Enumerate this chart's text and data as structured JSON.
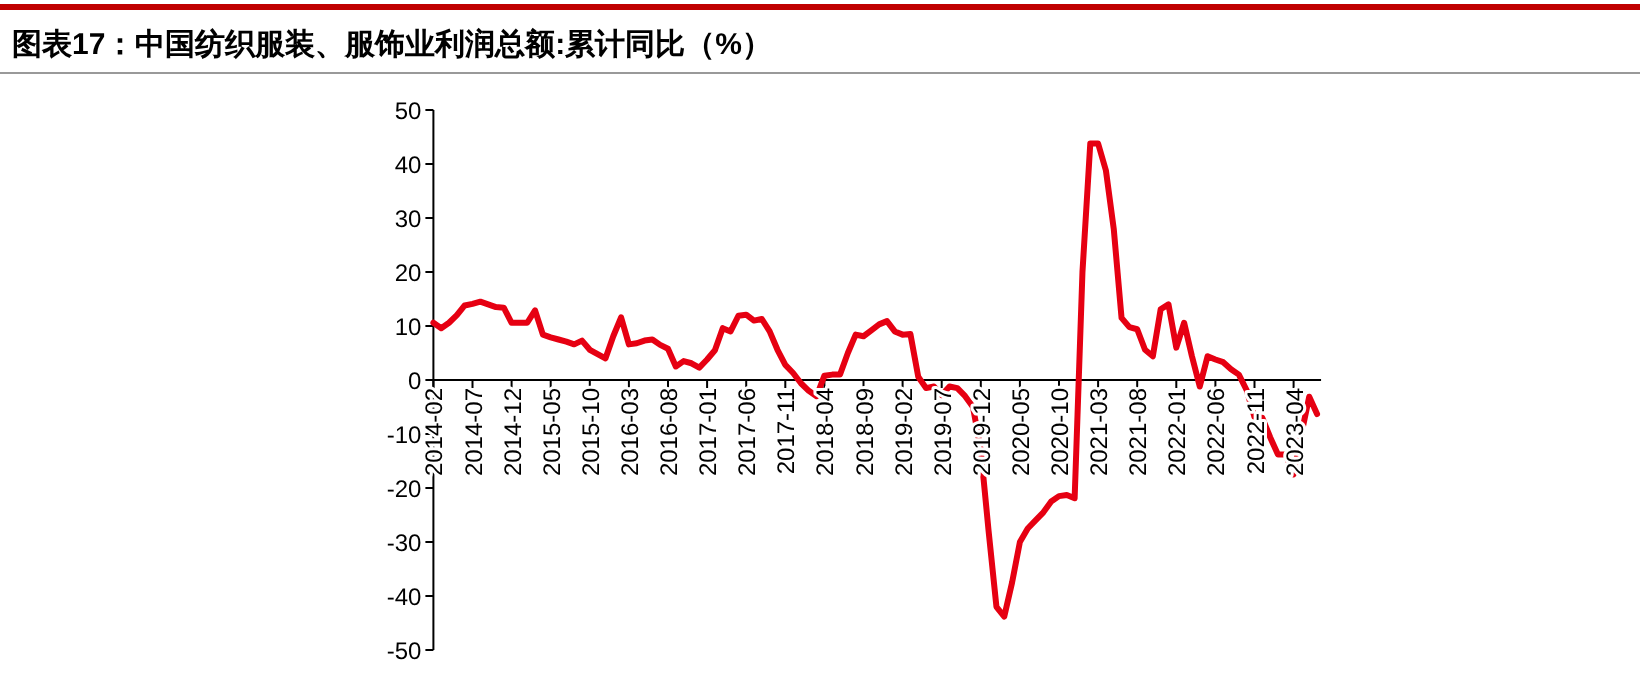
{
  "chart_data": {
    "type": "line",
    "title": "图表17：中国纺织服装、服饰业利润总额:累计同比（%）",
    "categories": [
      "2014-02",
      null,
      null,
      null,
      null,
      "2014-07",
      null,
      null,
      null,
      null,
      "2014-12",
      null,
      null,
      null,
      null,
      "2015-05",
      null,
      null,
      null,
      null,
      "2015-10",
      null,
      null,
      null,
      null,
      "2016-03",
      null,
      null,
      null,
      null,
      "2016-08",
      null,
      null,
      null,
      null,
      "2017-01",
      null,
      null,
      null,
      null,
      "2017-06",
      null,
      null,
      null,
      null,
      "2017-11",
      null,
      null,
      null,
      null,
      "2018-04",
      null,
      null,
      null,
      null,
      "2018-09",
      null,
      null,
      null,
      null,
      "2019-02",
      null,
      null,
      null,
      null,
      "2019-07",
      null,
      null,
      null,
      null,
      "2019-12",
      null,
      null,
      null,
      null,
      "2020-05",
      null,
      null,
      null,
      null,
      "2020-10",
      null,
      null,
      null,
      null,
      "2021-03",
      null,
      null,
      null,
      null,
      "2021-08",
      null,
      null,
      null,
      null,
      "2022-01",
      null,
      null,
      null,
      null,
      "2022-06",
      null,
      null,
      null,
      null,
      "2022-11",
      null,
      null,
      null,
      null,
      "2023-04",
      null,
      null,
      null
    ],
    "values": [
      10.6,
      9.6,
      10.6,
      12,
      13.8,
      14.1,
      14.5,
      14,
      13.5,
      13.4,
      10.6,
      10.6,
      10.6,
      12.9,
      8.4,
      7.9,
      7.5,
      7.1,
      6.6,
      7.3,
      5.6,
      4.8,
      4,
      8.1,
      11.6,
      6.6,
      6.8,
      7.3,
      7.5,
      6.5,
      5.8,
      2.5,
      3.5,
      3.1,
      2.3,
      3.8,
      5.5,
      9.6,
      9,
      11.9,
      12.1,
      11,
      11.3,
      9,
      5.6,
      2.8,
      1.3,
      -0.6,
      -2,
      -3,
      0.8,
      1,
      1,
      5,
      8.4,
      8.1,
      9.2,
      10.3,
      10.9,
      9,
      8.4,
      8.5,
      0.6,
      -1.5,
      -1.2,
      -2.8,
      -1.2,
      -1.5,
      -3,
      -5,
      -13,
      -28,
      -42,
      -43.8,
      -37.5,
      -30,
      -27.5,
      -26,
      -24.5,
      -22.5,
      -21.5,
      -21.3,
      -21.9,
      20,
      43.8,
      43.8,
      38.8,
      28,
      11.5,
      9.8,
      9.4,
      5.6,
      4.4,
      13.1,
      14,
      6,
      10.6,
      4.4,
      -1.2,
      4.4,
      3.8,
      3.3,
      2,
      1,
      -1.9,
      -6.9,
      -7,
      -10.6,
      -13.8,
      -13.8,
      -17.5,
      -10,
      -3.1,
      -6.3
    ],
    "color": "#e60012",
    "ylim": [
      -50,
      50
    ],
    "yticks": [
      -50,
      -40,
      -30,
      -20,
      -10,
      0,
      10,
      20,
      30,
      40,
      50
    ],
    "marker": "none",
    "line_style": "solid"
  }
}
